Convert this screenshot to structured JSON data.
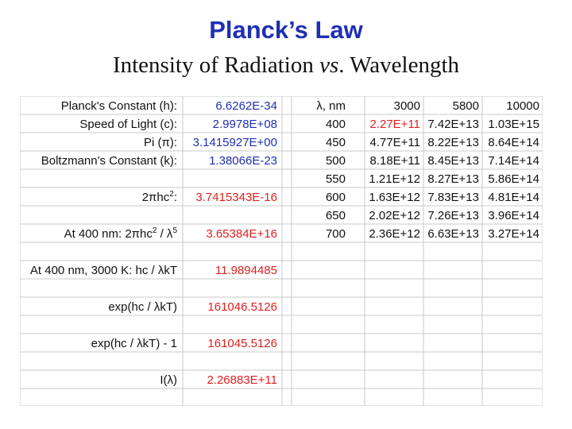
{
  "title": "Planck’s Law",
  "subtitle": {
    "part1": "Intensity of Radiation ",
    "vs": "vs",
    "part2": ". Wavelength"
  },
  "constants": {
    "planck": {
      "label": "Planck's Constant (h):",
      "value": "6.6262E-34"
    },
    "light": {
      "label": "Speed of Light (c):",
      "value": "2.9978E+08"
    },
    "pi": {
      "label": "Pi (π):",
      "value": "3.1415927E+00"
    },
    "boltz": {
      "label": "Boltzmann's Constant (k):",
      "value": "1.38066E-23"
    },
    "twopihc2": {
      "label_main": "2πhc",
      "label_sup": "2",
      "label_end": ":",
      "value": "3.7415343E-16"
    },
    "at400": {
      "label_main": "At 400 nm:  2πhc",
      "label_sup": "2",
      "label_mid": " / λ",
      "label_sup2": "5",
      "value": "3.65384E+16"
    },
    "hclkt": {
      "label": "At 400 nm, 3000 K: hc / λkT",
      "value": "11.9894485"
    },
    "exp": {
      "label": "exp(hc / λkT)",
      "value": "161046.5126"
    },
    "expm1": {
      "label": "exp(hc / λkT) - 1",
      "value": "161045.5126"
    },
    "intensity": {
      "label": "I(λ)",
      "value": "2.26883E+11"
    }
  },
  "table": {
    "header": {
      "lambda": "λ, nm",
      "t1": "3000",
      "t2": "5800",
      "t3": "10000"
    },
    "rows": [
      {
        "w": "400",
        "a": "2.27E+11",
        "b": "7.42E+13",
        "c": "1.03E+15"
      },
      {
        "w": "450",
        "a": "4.77E+11",
        "b": "8.22E+13",
        "c": "8.64E+14"
      },
      {
        "w": "500",
        "a": "8.18E+11",
        "b": "8.45E+13",
        "c": "7.14E+14"
      },
      {
        "w": "550",
        "a": "1.21E+12",
        "b": "8.27E+13",
        "c": "5.86E+14"
      },
      {
        "w": "600",
        "a": "1.63E+12",
        "b": "7.83E+13",
        "c": "4.81E+14"
      },
      {
        "w": "650",
        "a": "2.02E+12",
        "b": "7.26E+13",
        "c": "3.96E+14"
      },
      {
        "w": "700",
        "a": "2.36E+12",
        "b": "6.63E+13",
        "c": "3.27E+14"
      }
    ]
  },
  "colors": {
    "title": "#1f2fb3",
    "blue": "#1f2fb3",
    "red": "#e02020",
    "grid": "#c8c8c8"
  }
}
